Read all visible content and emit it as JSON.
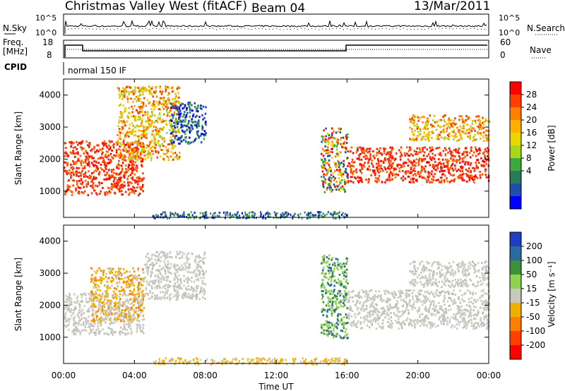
{
  "header": {
    "station": "Christmas Valley West (fitACF)",
    "beam": "Beam 04",
    "date": "13/Mar/2011"
  },
  "summary_panels": {
    "nsky_label": "N.Sky",
    "nsearch_label": "N.Search",
    "freq_label_1": "Freq.",
    "freq_label_2": "[MHz]",
    "nave_label": "Nave",
    "cpid_label": "CPID",
    "cpid_value": "normal 150 IF",
    "noise_left_ticks": [
      "10^5",
      "10^0"
    ],
    "noise_right_ticks": [
      "10^5",
      "10^0"
    ],
    "freq_ticks": [
      "18",
      "8"
    ],
    "nave_ticks": [
      "60",
      "0"
    ]
  },
  "power_colorbar": {
    "title": "Power [dB]",
    "labels": [
      "28",
      "24",
      "20",
      "16",
      "12",
      "8",
      "4"
    ],
    "colors": [
      "#ff0000",
      "#ff4000",
      "#ff8000",
      "#ffb000",
      "#e8d800",
      "#a6d81a",
      "#3fa940",
      "#2a7a5a",
      "#1f4fa8",
      "#0000ff"
    ]
  },
  "velocity_colorbar": {
    "title": "Velocity [m s⁻¹]",
    "labels": [
      "200",
      "100",
      "50",
      "15",
      "-15",
      "-50",
      "-100",
      "-200"
    ],
    "colors": [
      "#1f3fc0",
      "#2a6aa0",
      "#3f8f3f",
      "#8fd24f",
      "#c8c8c0",
      "#f0b000",
      "#ff8000",
      "#ff4000",
      "#ff0000"
    ]
  },
  "axes": {
    "yaxis_label": "Slant Range [km]",
    "xaxis_label": "Time UT",
    "x_ticks": [
      "00:00",
      "04:00",
      "08:00",
      "12:00",
      "16:00",
      "20:00",
      "00:00"
    ],
    "y_ticks": [
      "4000",
      "3000",
      "2000",
      "1000"
    ]
  },
  "chart_data": [
    {
      "type": "heatmap",
      "title": "Power",
      "xlabel": "Time UT",
      "ylabel": "Slant Range [km]",
      "xlim_hours": [
        0,
        24
      ],
      "ylim_km": [
        180,
        4500
      ],
      "colorbar_label": "Power [dB]",
      "colorbar_range": [
        0,
        30
      ],
      "regions": [
        {
          "t": [
            0,
            4.5
          ],
          "r": [
            900,
            2600
          ],
          "level": "high"
        },
        {
          "t": [
            3,
            6.5
          ],
          "r": [
            2000,
            4300
          ],
          "level": "medium"
        },
        {
          "t": [
            6,
            8
          ],
          "r": [
            2500,
            3800
          ],
          "level": "low"
        },
        {
          "t": [
            14.5,
            16
          ],
          "r": [
            1000,
            3000
          ],
          "level": "mixed"
        },
        {
          "t": [
            16,
            24
          ],
          "r": [
            1300,
            2400
          ],
          "level": "high"
        },
        {
          "t": [
            19.5,
            24
          ],
          "r": [
            2600,
            3400
          ],
          "level": "medium"
        }
      ]
    },
    {
      "type": "heatmap",
      "title": "Velocity",
      "xlabel": "Time UT",
      "ylabel": "Slant Range [km]",
      "xlim_hours": [
        0,
        24
      ],
      "ylim_km": [
        180,
        4500
      ],
      "colorbar_label": "Velocity [m s-1]",
      "colorbar_range": [
        -200,
        200
      ],
      "regions": [
        {
          "t": [
            0,
            4.5
          ],
          "r": [
            1100,
            2400
          ],
          "level": "near-zero"
        },
        {
          "t": [
            1.5,
            4.5
          ],
          "r": [
            1500,
            3200
          ],
          "level": "negative"
        },
        {
          "t": [
            4.5,
            8
          ],
          "r": [
            2200,
            3700
          ],
          "level": "near-zero"
        },
        {
          "t": [
            14.5,
            16
          ],
          "r": [
            1000,
            3600
          ],
          "level": "positive"
        },
        {
          "t": [
            16,
            24
          ],
          "r": [
            1300,
            2500
          ],
          "level": "near-zero"
        },
        {
          "t": [
            19.5,
            24
          ],
          "r": [
            2600,
            3400
          ],
          "level": "near-zero"
        }
      ]
    }
  ]
}
